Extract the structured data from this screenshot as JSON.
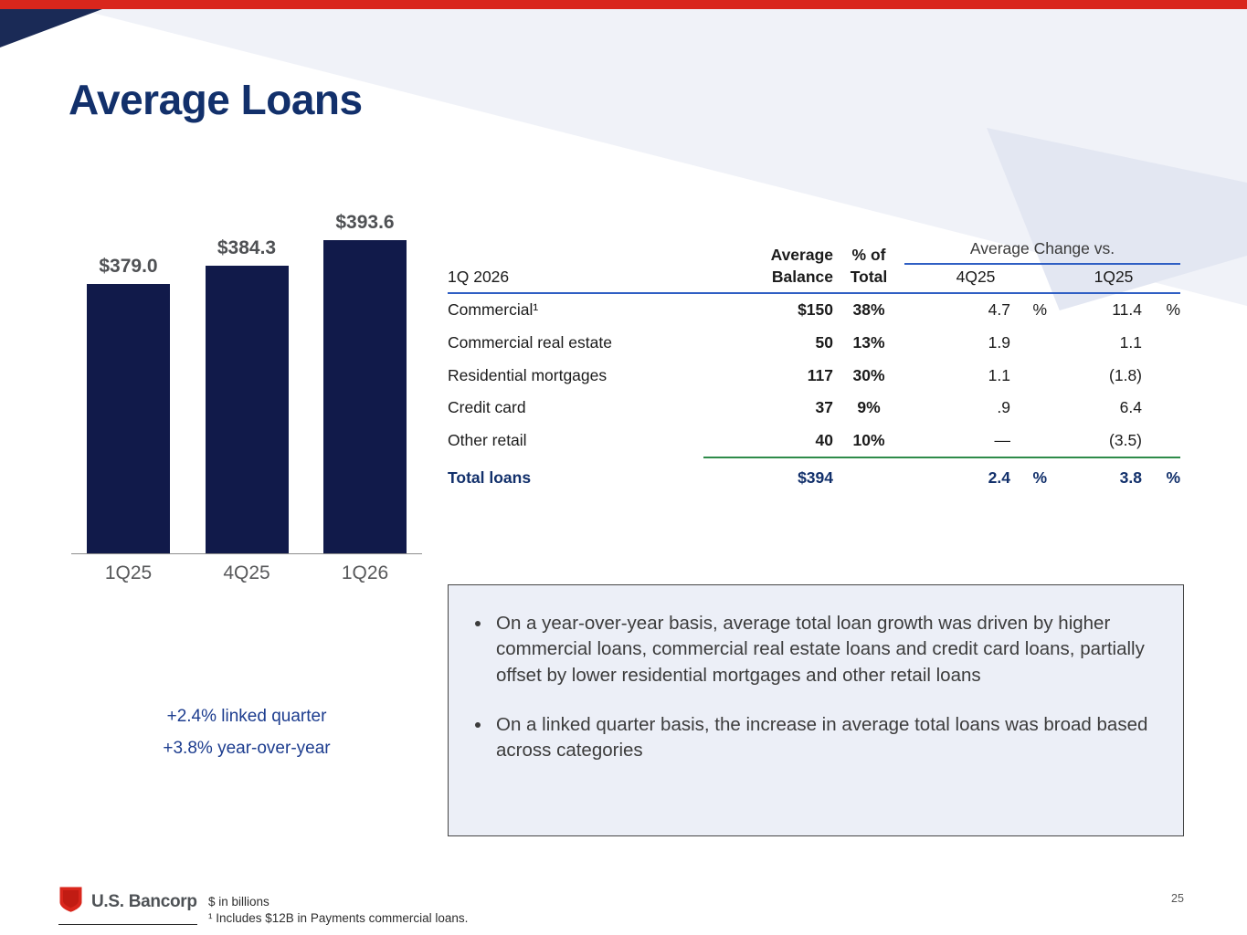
{
  "slide": {
    "title": "Average Loans",
    "page_number": "25"
  },
  "chart_data": {
    "type": "bar",
    "categories": [
      "1Q25",
      "4Q25",
      "1Q26"
    ],
    "values": [
      379.0,
      384.3,
      393.6
    ],
    "data_labels": [
      "$379.0",
      "$384.3",
      "$393.6"
    ],
    "units": "$ in billions",
    "ylim": [
      300,
      400
    ],
    "grid": false,
    "bar_color": "#111A4A"
  },
  "growth": {
    "linked_quarter": "+2.4%  linked quarter",
    "year_over_year": "+3.8% year-over-year"
  },
  "table": {
    "header_top": {
      "average": "Average",
      "pct_of": "% of",
      "change": "Average Change vs."
    },
    "header": {
      "period": "1Q 2026",
      "balance": "Balance",
      "total": "Total",
      "vs_4q": "4Q25",
      "vs_1q": "1Q25"
    },
    "rows": [
      {
        "label": "Commercial¹",
        "balance": "$150",
        "total": "38%",
        "chg_4q": "4.7",
        "pct_4q": "%",
        "chg_1q": "11.4",
        "pct_1q": "%"
      },
      {
        "label": "Commercial real estate",
        "balance": "50",
        "total": "13%",
        "chg_4q": "1.9",
        "pct_4q": "",
        "chg_1q": "1.1",
        "pct_1q": ""
      },
      {
        "label": "Residential mortgages",
        "balance": "117",
        "total": "30%",
        "chg_4q": "1.1",
        "pct_4q": "",
        "chg_1q": "(1.8)",
        "pct_1q": ""
      },
      {
        "label": "Credit card",
        "balance": "37",
        "total": "9%",
        "chg_4q": ".9",
        "pct_4q": "",
        "chg_1q": "6.4",
        "pct_1q": ""
      },
      {
        "label": "Other retail",
        "balance": "40",
        "total": "10%",
        "chg_4q": "—",
        "pct_4q": "",
        "chg_1q": "(3.5)",
        "pct_1q": ""
      }
    ],
    "total_row": {
      "label": "Total loans",
      "balance": "$394",
      "total": "",
      "chg_4q": "2.4",
      "pct_4q": "%",
      "chg_1q": "3.8",
      "pct_1q": "%"
    }
  },
  "bullets": [
    "On a year-over-year basis, average total loan growth was driven by higher commercial loans, commercial real estate loans and credit card loans, partially offset by lower residential mortgages and other retail loans",
    "On a linked quarter basis, the increase in average total loans was broad based across categories"
  ],
  "footer": {
    "logo_text": "U.S. Bancorp",
    "note_units": "$ in billions",
    "note_footnote": "¹ Includes $12B in Payments commercial loans."
  },
  "colors": {
    "brand_red": "#D9261C",
    "navy": "#12306B",
    "bar_navy": "#111A4A",
    "line_blue": "#2F5FC4",
    "line_green": "#2E8B49",
    "commentary_bg": "#ECEFF7"
  }
}
